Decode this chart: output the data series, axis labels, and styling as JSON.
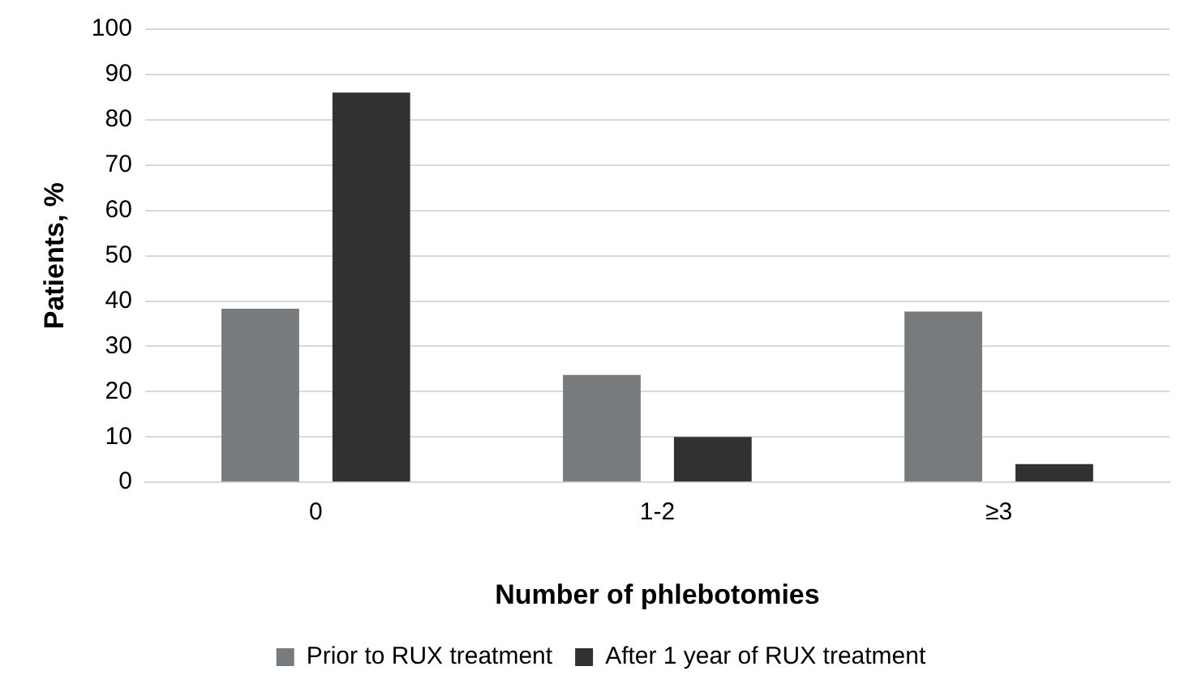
{
  "chart_data": {
    "type": "bar",
    "xlabel": "Number of phlebotomies",
    "ylabel": "Patients, %",
    "categories": [
      "0",
      "1-2",
      "≥3"
    ],
    "series": [
      {
        "name": "Prior to RUX treatment",
        "color": "#787b7e",
        "values": [
          38.3,
          23.7,
          37.7
        ]
      },
      {
        "name": "After 1 year of RUX treatment",
        "color": "#32312f",
        "values": [
          86,
          10,
          4
        ]
      }
    ],
    "ylim": [
      0,
      100
    ],
    "yticks": [
      0,
      10,
      20,
      30,
      40,
      50,
      60,
      70,
      80,
      90,
      100
    ],
    "grid": "y",
    "legend": "bottom"
  }
}
